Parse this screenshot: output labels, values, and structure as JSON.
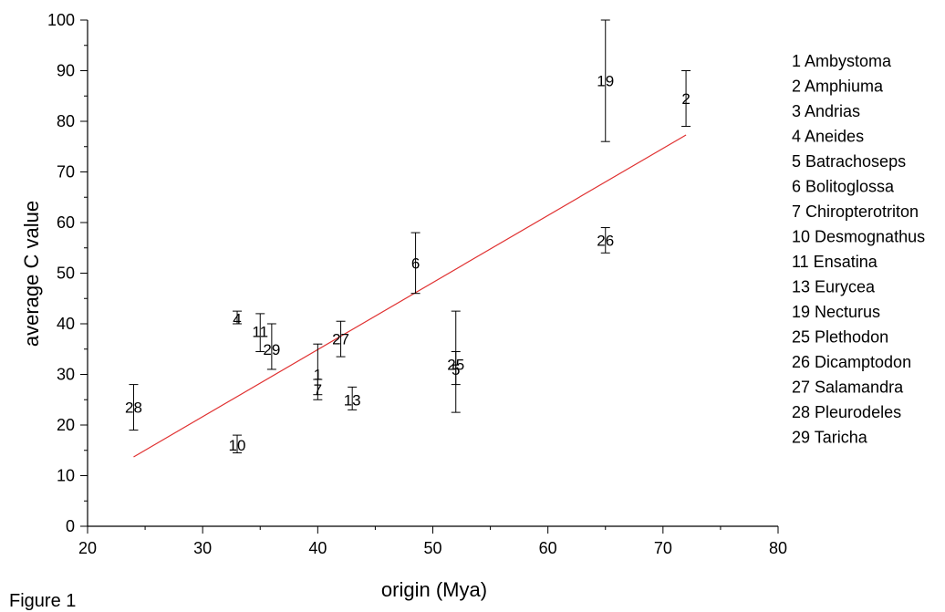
{
  "caption": "Figure 1",
  "chart_data": {
    "type": "scatter",
    "xlabel": "origin (Mya)",
    "ylabel": "average C value",
    "xlim": [
      20,
      80
    ],
    "ylim": [
      0,
      100
    ],
    "x_ticks": [
      20,
      30,
      40,
      50,
      60,
      70,
      80
    ],
    "y_ticks": [
      0,
      10,
      20,
      30,
      40,
      50,
      60,
      70,
      80,
      90,
      100
    ],
    "grid": false,
    "legend_placement": "right",
    "colors": {
      "trendline": "#e03030",
      "points": "#000000",
      "errorbars": "#000000"
    },
    "points": [
      {
        "label": "1",
        "x": 40,
        "y": 30,
        "err_low": 26,
        "err_high": 36
      },
      {
        "label": "2",
        "x": 72,
        "y": 84.5,
        "err_low": 79,
        "err_high": 90
      },
      {
        "label": "4",
        "x": 33,
        "y": 41,
        "err_low": 40,
        "err_high": 42.5
      },
      {
        "label": "5",
        "x": 52,
        "y": 31,
        "err_low": 28,
        "err_high": 34.5
      },
      {
        "label": "6",
        "x": 48.5,
        "y": 52,
        "err_low": 46,
        "err_high": 58
      },
      {
        "label": "7",
        "x": 40,
        "y": 27,
        "err_low": 25,
        "err_high": 29
      },
      {
        "label": "10",
        "x": 33,
        "y": 16,
        "err_low": 14.5,
        "err_high": 18
      },
      {
        "label": "11",
        "x": 35,
        "y": 38.5,
        "err_low": 34.5,
        "err_high": 42
      },
      {
        "label": "13",
        "x": 43,
        "y": 25,
        "err_low": 23,
        "err_high": 27.5
      },
      {
        "label": "19",
        "x": 65,
        "y": 88,
        "err_low": 76,
        "err_high": 100
      },
      {
        "label": "25",
        "x": 52,
        "y": 32,
        "err_low": 22.5,
        "err_high": 42.5
      },
      {
        "label": "26",
        "x": 65,
        "y": 56.5,
        "err_low": 54,
        "err_high": 59
      },
      {
        "label": "27",
        "x": 42,
        "y": 37,
        "err_low": 33.5,
        "err_high": 40.5
      },
      {
        "label": "28",
        "x": 24,
        "y": 23.5,
        "err_low": 19,
        "err_high": 28
      },
      {
        "label": "29",
        "x": 36,
        "y": 35,
        "err_low": 31,
        "err_high": 40
      }
    ],
    "trendline": {
      "x": [
        24,
        72
      ],
      "y": [
        13.7,
        77.3
      ]
    },
    "legend": [
      "1 Ambystoma",
      "2 Amphiuma",
      "3 Andrias",
      "4 Aneides",
      "5 Batrachoseps",
      "6 Bolitoglossa",
      "7 Chiropterotriton",
      "10 Desmognathus",
      "11 Ensatina",
      "13 Eurycea",
      "19 Necturus",
      "25 Plethodon",
      "26 Dicamptodon",
      "27 Salamandra",
      "28 Pleurodeles",
      "29 Taricha"
    ]
  }
}
